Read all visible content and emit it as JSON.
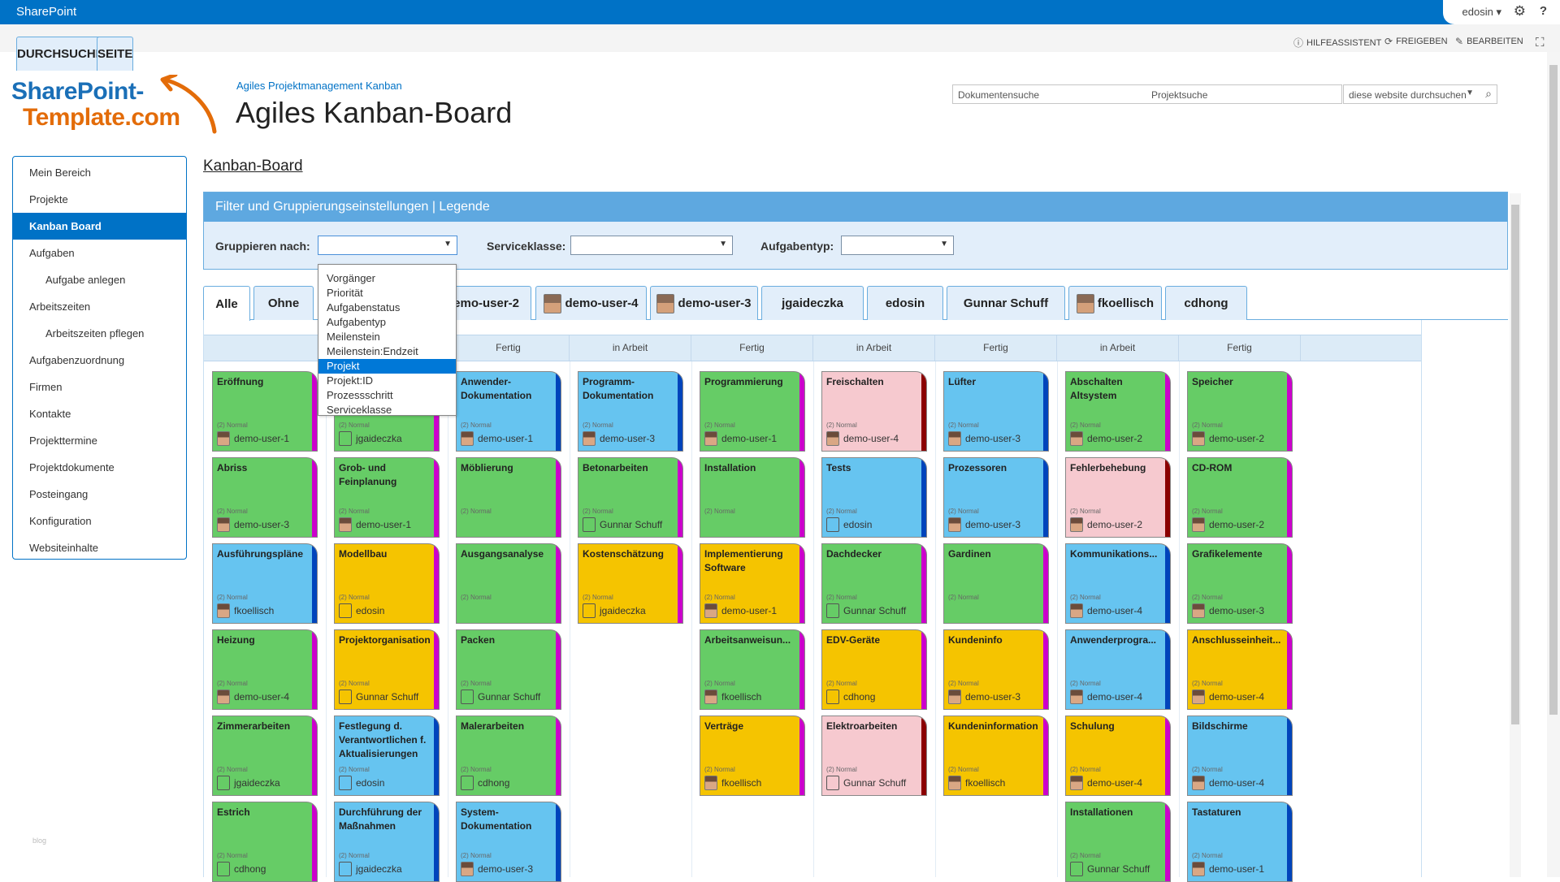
{
  "suitebar": {
    "brand": "SharePoint",
    "user": "edosin ▾",
    "gear_icon": "gear-icon",
    "help": "?"
  },
  "ribbon": {
    "tabs": [
      "DURCHSUCHEN",
      "SEITE"
    ],
    "actions": [
      {
        "icon": "info-icon",
        "label": "HILFEASSISTENT"
      },
      {
        "icon": "share-icon",
        "label": "FREIGEBEN"
      },
      {
        "icon": "edit-icon",
        "label": "BEARBEITEN"
      }
    ]
  },
  "header": {
    "logo_line1": "SharePoint-",
    "logo_line2": "Template.com",
    "breadcrumb": "Agiles Projektmanagement Kanban",
    "title": "Agiles Kanban-Board"
  },
  "search": {
    "scope1": "Dokumentensuche",
    "scope2": "Projektsuche",
    "placeholder": "diese website durchsuchen"
  },
  "nav": {
    "items": [
      {
        "label": "Mein Bereich"
      },
      {
        "label": "Projekte"
      },
      {
        "label": "Kanban Board"
      },
      {
        "label": "Aufgaben"
      },
      {
        "label": "Aufgabe anlegen"
      },
      {
        "label": "Arbeitszeiten"
      },
      {
        "label": "Arbeitszeiten pflegen"
      },
      {
        "label": "Aufgabenzuordnung"
      },
      {
        "label": "Firmen"
      },
      {
        "label": "Kontakte"
      },
      {
        "label": "Projekttermine"
      },
      {
        "label": "Projektdokumente"
      },
      {
        "label": "Posteingang"
      },
      {
        "label": "Konfiguration"
      },
      {
        "label": "Websiteinhalte"
      }
    ],
    "footer": "blog"
  },
  "board": {
    "title": "Kanban-Board",
    "filter_header": "Filter und Gruppierungseinstellungen | Legende",
    "group_label": "Gruppieren nach:",
    "service_label": "Serviceklasse:",
    "tasktype_label": "Aufgabentyp:",
    "group_options": [
      "Vorgänger",
      "Priorität",
      "Aufgabenstatus",
      "Aufgabentyp",
      "Meilenstein",
      "Meilenstein:Endzeit",
      "Projekt",
      "Projekt:ID",
      "Prozessschritt",
      "Serviceklasse"
    ],
    "group_selected": "Projekt",
    "tabs": [
      "Alle",
      "Ohne",
      "demo-user-2",
      "demo-user-4",
      "demo-user-3",
      "jgaideczka",
      "edosin",
      "Gunnar Schuff",
      "fkoellisch",
      "cdhong"
    ],
    "columns": [
      "Fertig",
      "in Arbeit",
      "Fertig",
      "in Arbeit",
      "Fertig",
      "in Arbeit",
      "Fertig"
    ],
    "priority": "(2) Normal",
    "lanes": [
      [
        {
          "t": "Eröffnung",
          "u": "demo-user-1",
          "c": "green"
        },
        {
          "t": "Abriss",
          "u": "demo-user-3",
          "c": "green"
        },
        {
          "t": "Ausführungspläne",
          "u": "fkoellisch",
          "c": "blue"
        },
        {
          "t": "Heizung",
          "u": "demo-user-4",
          "c": "green"
        },
        {
          "t": "Zimmerarbeiten",
          "u": "jgaideczka",
          "c": "green"
        },
        {
          "t": "Estrich",
          "u": "cdhong",
          "c": "green"
        }
      ],
      [
        {
          "t": "",
          "u": "jgaideczka",
          "c": "green"
        },
        {
          "t": "Grob- und Feinplanung",
          "u": "demo-user-1",
          "c": "green"
        },
        {
          "t": "Modellbau",
          "u": "edosin",
          "c": "yellow"
        },
        {
          "t": "Projektorganisation",
          "u": "Gunnar Schuff",
          "c": "yellow"
        },
        {
          "t": "Festlegung d. Verantwortlichen f. Aktualisierungen",
          "u": "edosin",
          "c": "blue"
        },
        {
          "t": "Durchführung der Maßnahmen",
          "u": "jgaideczka",
          "c": "blue"
        }
      ],
      [
        {
          "t": "Anwender-Dokumentation",
          "u": "demo-user-1",
          "c": "blue"
        },
        {
          "t": "Möblierung",
          "u": "",
          "c": "green"
        },
        {
          "t": "Ausgangsanalyse",
          "u": "",
          "c": "green"
        },
        {
          "t": "Packen",
          "u": "Gunnar Schuff",
          "c": "green"
        },
        {
          "t": "Malerarbeiten",
          "u": "cdhong",
          "c": "green"
        },
        {
          "t": "System-Dokumentation",
          "u": "demo-user-3",
          "c": "blue"
        }
      ],
      [
        {
          "t": "Programm-Dokumentation",
          "u": "demo-user-3",
          "c": "blue"
        },
        {
          "t": "Betonarbeiten",
          "u": "Gunnar Schuff",
          "c": "green"
        },
        {
          "t": "Kostenschätzung",
          "u": "jgaideczka",
          "c": "yellow"
        }
      ],
      [
        {
          "t": "Programmierung",
          "u": "demo-user-1",
          "c": "green"
        },
        {
          "t": "Installation",
          "u": "",
          "c": "green"
        },
        {
          "t": "Implementierung Software",
          "u": "demo-user-1",
          "c": "yellow"
        },
        {
          "t": "Arbeitsanweisun...",
          "u": "fkoellisch",
          "c": "green"
        },
        {
          "t": "Verträge",
          "u": "fkoellisch",
          "c": "yellow"
        }
      ],
      [
        {
          "t": "Freischalten",
          "u": "demo-user-4",
          "c": "pink"
        },
        {
          "t": "Tests",
          "u": "edosin",
          "c": "blue"
        },
        {
          "t": "Dachdecker",
          "u": "Gunnar Schuff",
          "c": "green"
        },
        {
          "t": "EDV-Geräte",
          "u": "cdhong",
          "c": "yellow"
        },
        {
          "t": "Elektroarbeiten",
          "u": "Gunnar Schuff",
          "c": "pink"
        }
      ],
      [
        {
          "t": "Lüfter",
          "u": "demo-user-3",
          "c": "blue"
        },
        {
          "t": "Prozessoren",
          "u": "demo-user-3",
          "c": "blue"
        },
        {
          "t": "Gardinen",
          "u": "",
          "c": "green"
        },
        {
          "t": "Kundeninfo",
          "u": "demo-user-3",
          "c": "yellow"
        },
        {
          "t": "Kundeninformation",
          "u": "fkoellisch",
          "c": "yellow"
        }
      ],
      [
        {
          "t": "Abschalten Altsystem",
          "u": "demo-user-2",
          "c": "green"
        },
        {
          "t": "Fehlerbehebung",
          "u": "demo-user-2",
          "c": "pink"
        },
        {
          "t": "Kommunikations...",
          "u": "demo-user-4",
          "c": "blue"
        },
        {
          "t": "Anwenderprogra...",
          "u": "demo-user-4",
          "c": "blue"
        },
        {
          "t": "Schulung",
          "u": "demo-user-4",
          "c": "yellow"
        },
        {
          "t": "Installationen",
          "u": "Gunnar Schuff",
          "c": "green"
        }
      ],
      [
        {
          "t": "Speicher",
          "u": "demo-user-2",
          "c": "green"
        },
        {
          "t": "CD-ROM",
          "u": "demo-user-2",
          "c": "green"
        },
        {
          "t": "Grafikelemente",
          "u": "demo-user-3",
          "c": "green"
        },
        {
          "t": "Anschlusseinheit...",
          "u": "demo-user-4",
          "c": "yellow"
        },
        {
          "t": "Bildschirme",
          "u": "demo-user-4",
          "c": "blue"
        },
        {
          "t": "Tastaturen",
          "u": "demo-user-1",
          "c": "blue"
        }
      ]
    ],
    "colors": {
      "green": "#66cc66",
      "blue": "#66c4f0",
      "pink": "#f6c9cf",
      "yellow": "#f5c400"
    }
  }
}
